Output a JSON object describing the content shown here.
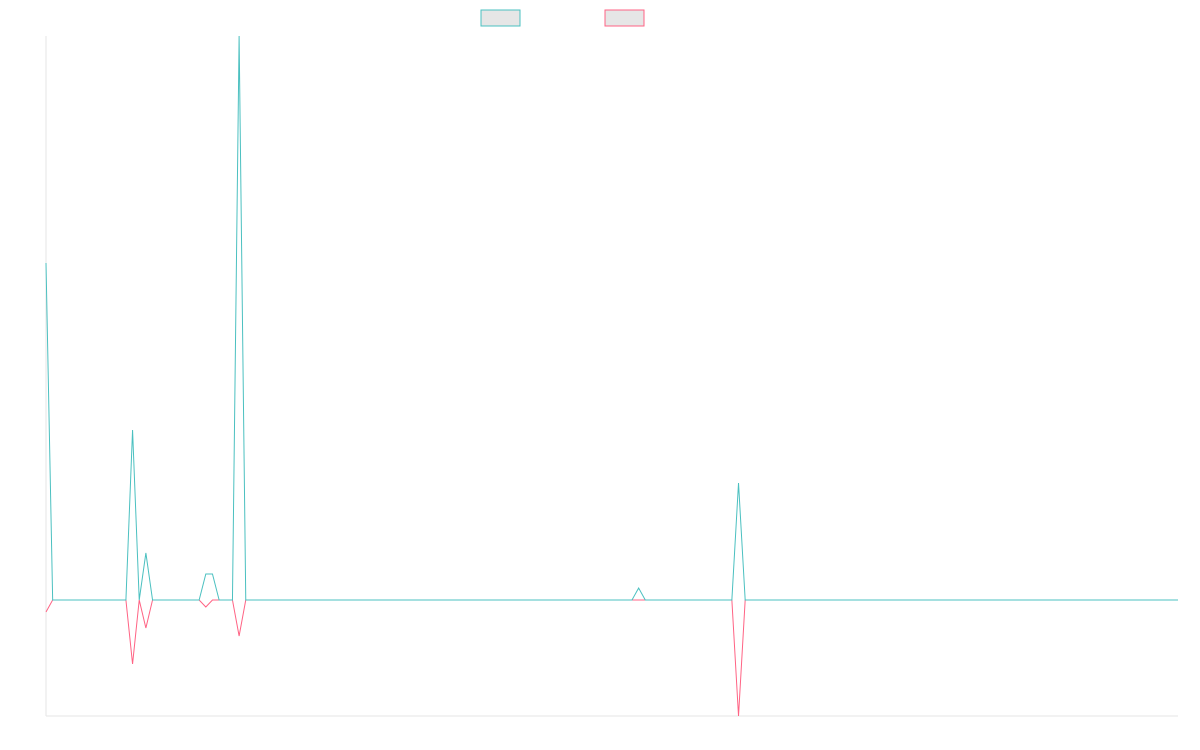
{
  "chart_data": {
    "type": "line",
    "ylim": [
      -116,
      564
    ],
    "series": [
      {
        "color": "#4bc0c0",
        "values": [
          337,
          0,
          0,
          0,
          0,
          0,
          0,
          0,
          0,
          0,
          0,
          0,
          0,
          170,
          0,
          47,
          0,
          0,
          0,
          0,
          0,
          0,
          0,
          0,
          26,
          26,
          0,
          0,
          0,
          564,
          0,
          0,
          0,
          0,
          0,
          0,
          0,
          0,
          0,
          0,
          0,
          0,
          0,
          0,
          0,
          0,
          0,
          0,
          0,
          0,
          0,
          0,
          0,
          0,
          0,
          0,
          0,
          0,
          0,
          0,
          0,
          0,
          0,
          0,
          0,
          0,
          0,
          0,
          0,
          0,
          0,
          0,
          0,
          0,
          0,
          0,
          0,
          0,
          0,
          0,
          0,
          0,
          0,
          0,
          0,
          0,
          0,
          0,
          0,
          12,
          0,
          0,
          0,
          0,
          0,
          0,
          0,
          0,
          0,
          0,
          0,
          0,
          0,
          0,
          117,
          0,
          0,
          0,
          0,
          0,
          0,
          0,
          0,
          0,
          0,
          0,
          0,
          0,
          0,
          0,
          0,
          0,
          0,
          0,
          0,
          0,
          0,
          0,
          0,
          0,
          0,
          0,
          0,
          0,
          0,
          0,
          0,
          0,
          0,
          0,
          0,
          0,
          0,
          0,
          0,
          0,
          0,
          0,
          0,
          0,
          0,
          0,
          0,
          0,
          0,
          0,
          0,
          0,
          0,
          0,
          0,
          0,
          0,
          0,
          0,
          0,
          0,
          0,
          0,
          0,
          0
        ]
      },
      {
        "color": "#ff6384",
        "values": [
          -12,
          0,
          0,
          0,
          0,
          0,
          0,
          0,
          0,
          0,
          0,
          0,
          0,
          -64,
          0,
          -28,
          0,
          0,
          0,
          0,
          0,
          0,
          0,
          0,
          -7,
          0,
          0,
          0,
          0,
          -36,
          0,
          0,
          0,
          0,
          0,
          0,
          0,
          0,
          0,
          0,
          0,
          0,
          0,
          0,
          0,
          0,
          0,
          0,
          0,
          0,
          0,
          0,
          0,
          0,
          0,
          0,
          0,
          0,
          0,
          0,
          0,
          0,
          0,
          0,
          0,
          0,
          0,
          0,
          0,
          0,
          0,
          0,
          0,
          0,
          0,
          0,
          0,
          0,
          0,
          0,
          0,
          0,
          0,
          0,
          0,
          0,
          0,
          0,
          0,
          0,
          0,
          0,
          0,
          0,
          0,
          0,
          0,
          0,
          0,
          0,
          0,
          0,
          0,
          0,
          -116,
          0,
          0,
          0,
          0,
          0,
          0,
          0,
          0,
          0,
          0,
          0,
          0,
          0,
          0,
          0,
          0,
          0,
          0,
          0,
          0,
          0,
          0,
          0,
          0,
          0,
          0,
          0,
          0,
          0,
          0,
          0,
          0,
          0,
          0,
          0,
          0,
          0,
          0,
          0,
          0,
          0,
          0,
          0,
          0,
          0,
          0,
          0,
          0,
          0,
          0,
          0,
          0,
          0,
          0,
          0,
          0,
          0,
          0,
          0,
          0,
          0,
          0,
          0,
          0,
          0,
          0
        ]
      }
    ]
  }
}
